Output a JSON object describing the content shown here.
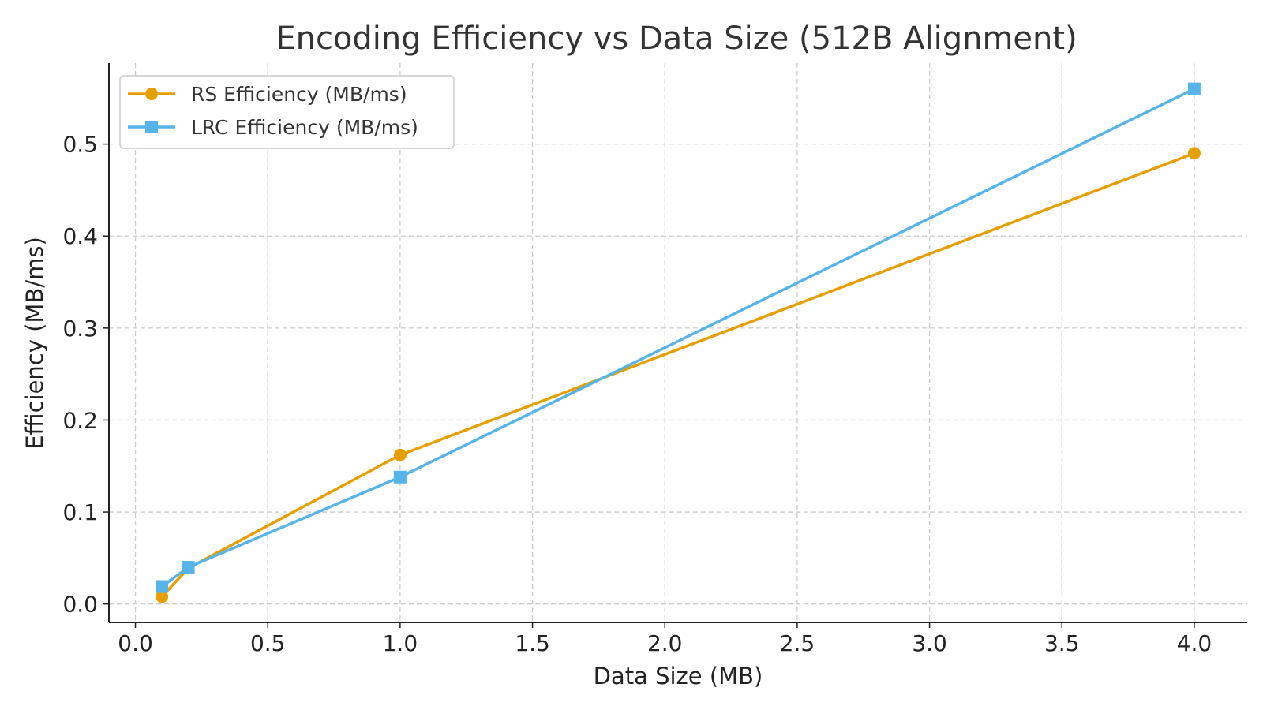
{
  "chart_data": {
    "type": "line",
    "title": "Encoding Efficiency vs Data Size (512B Alignment)",
    "xlabel": "Data Size (MB)",
    "ylabel": "Efficiency (MB/ms)",
    "xlim": [
      -0.1,
      4.2
    ],
    "ylim": [
      -0.02,
      0.588
    ],
    "xticks": [
      "0.0",
      "0.5",
      "1.0",
      "1.5",
      "2.0",
      "2.5",
      "3.0",
      "3.5",
      "4.0"
    ],
    "yticks": [
      "0.0",
      "0.1",
      "0.2",
      "0.3",
      "0.4",
      "0.5"
    ],
    "grid": true,
    "legend_position": "top-left",
    "series": [
      {
        "name": "RS Efficiency (MB/ms)",
        "color": "#E69F00",
        "marker": "circle",
        "x": [
          0.1,
          0.2,
          1.0,
          4.0
        ],
        "y": [
          0.008,
          0.039,
          0.162,
          0.49
        ]
      },
      {
        "name": "LRC Efficiency (MB/ms)",
        "color": "#56B4E9",
        "marker": "square",
        "x": [
          0.1,
          0.2,
          1.0,
          4.0
        ],
        "y": [
          0.019,
          0.04,
          0.138,
          0.56
        ]
      }
    ]
  }
}
